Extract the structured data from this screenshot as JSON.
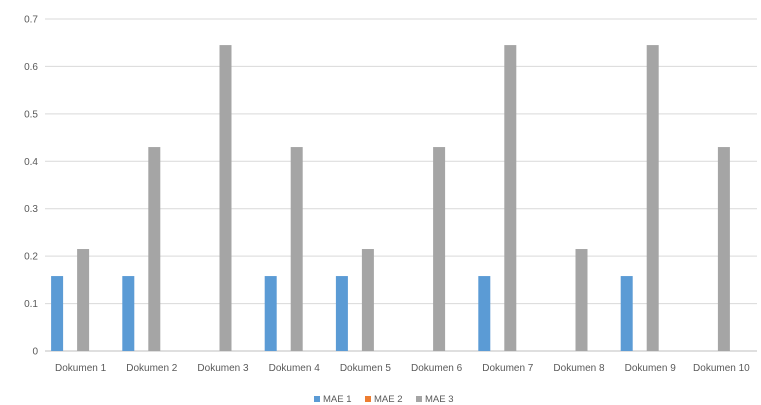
{
  "chart_data": {
    "type": "bar",
    "categories": [
      "Dokumen 1",
      "Dokumen 2",
      "Dokumen 3",
      "Dokumen 4",
      "Dokumen 5",
      "Dokumen 6",
      "Dokumen 7",
      "Dokumen 8",
      "Dokumen 9",
      "Dokumen 10"
    ],
    "series": [
      {
        "name": "MAE 1",
        "color": "#5b9bd5",
        "values": [
          0.158,
          0.158,
          0,
          0.158,
          0.158,
          0,
          0.158,
          0,
          0.158,
          0
        ]
      },
      {
        "name": "MAE 2",
        "color": "#ed7d31",
        "values": [
          0,
          0,
          0,
          0,
          0,
          0,
          0,
          0,
          0,
          0
        ]
      },
      {
        "name": "MAE 3",
        "color": "#a5a5a5",
        "values": [
          0.215,
          0.43,
          0.645,
          0.43,
          0.215,
          0.43,
          0.645,
          0.215,
          0.645,
          0.43
        ]
      }
    ],
    "yticks": [
      "0",
      "0.1",
      "0.2",
      "0.3",
      "0.4",
      "0.5",
      "0.6",
      "0.7"
    ],
    "ylim": [
      0,
      0.7
    ],
    "grid": true,
    "legend_position": "bottom"
  }
}
